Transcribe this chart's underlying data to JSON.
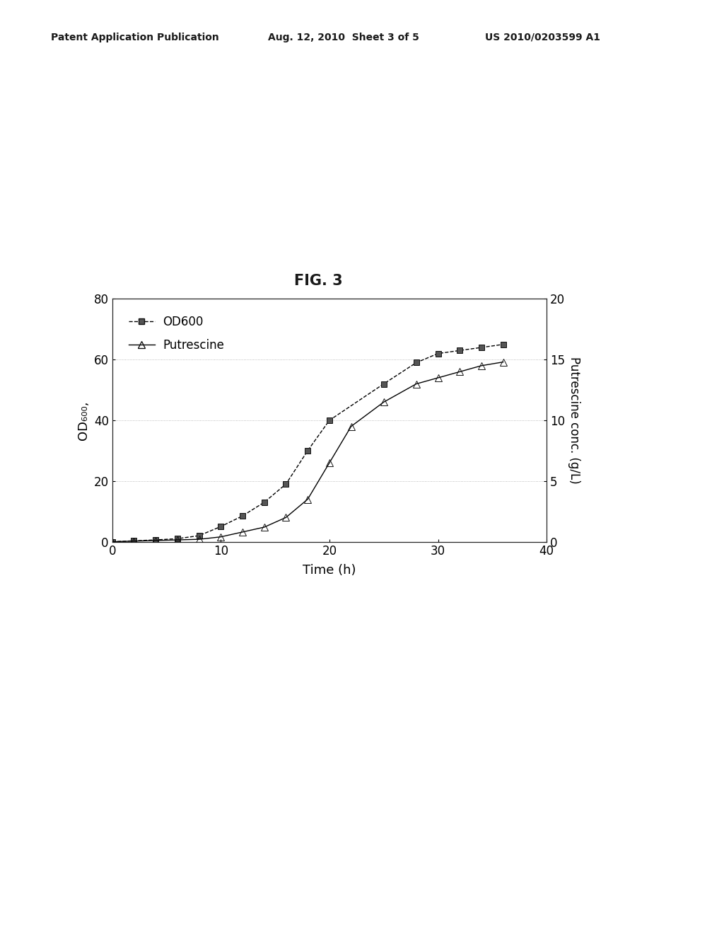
{
  "header_left": "Patent Application Publication",
  "header_mid": "Aug. 12, 2010  Sheet 3 of 5",
  "header_right": "US 2010/0203599 A1",
  "fig_label": "FIG. 3",
  "od600_time": [
    0,
    2,
    4,
    6,
    8,
    10,
    12,
    14,
    16,
    18,
    20,
    25,
    28,
    30,
    32,
    34,
    36
  ],
  "od600_values": [
    0,
    0.3,
    0.6,
    1.0,
    2.0,
    5.0,
    8.5,
    13,
    19,
    30,
    40,
    52,
    59,
    62,
    63,
    64,
    65
  ],
  "putrescine_time": [
    0,
    2,
    4,
    6,
    8,
    10,
    12,
    14,
    16,
    18,
    20,
    22,
    25,
    28,
    30,
    32,
    34,
    36
  ],
  "putrescine_values": [
    0,
    0.05,
    0.1,
    0.15,
    0.2,
    0.4,
    0.8,
    1.2,
    2.0,
    3.5,
    6.5,
    9.5,
    11.5,
    13.0,
    13.5,
    14.0,
    14.5,
    14.8
  ],
  "ylabel_left": "OD₆₀₀,",
  "ylabel_right": "Putrescine conc. (g/L)",
  "xlabel": "Time (h)",
  "xlim": [
    0,
    40
  ],
  "ylim_left": [
    0,
    80
  ],
  "ylim_right": [
    0,
    20
  ],
  "xticks": [
    0,
    10,
    20,
    30,
    40
  ],
  "yticks_left": [
    0,
    20,
    40,
    60,
    80
  ],
  "yticks_right": [
    0,
    5,
    10,
    15,
    20
  ],
  "background_color": "#ffffff",
  "line_color": "#000000",
  "legend1_label": "OD600",
  "legend2_label": "Putrescine",
  "header_fontsize": 10,
  "fig_label_fontsize": 15,
  "axis_label_fontsize": 13,
  "tick_fontsize": 12
}
